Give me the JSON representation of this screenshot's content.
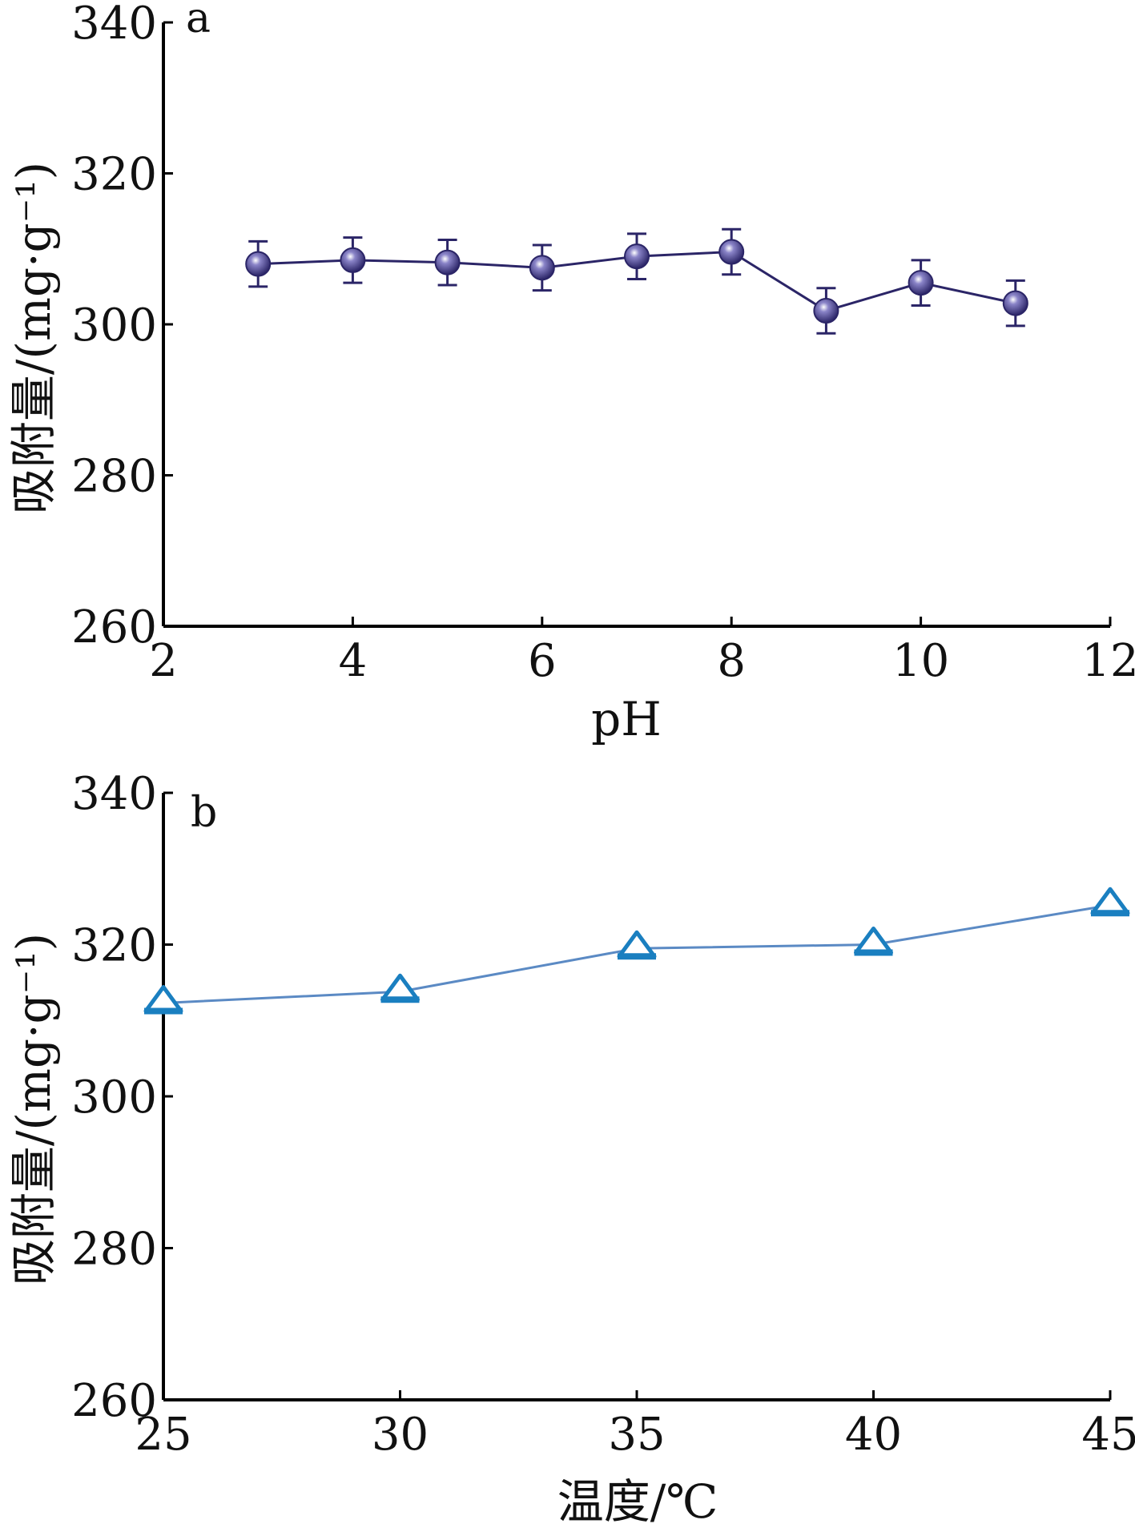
{
  "chart_data": [
    {
      "type": "line",
      "panel_label": "a",
      "xlabel": "pH",
      "ylabel": "吸附量/(mg·g⁻¹)",
      "xlim": [
        2,
        12
      ],
      "ylim": [
        260,
        340
      ],
      "xticks": [
        "2",
        "4",
        "6",
        "8",
        "10",
        "12"
      ],
      "yticks": [
        "260",
        "280",
        "300",
        "320",
        "340"
      ],
      "marker": "circle",
      "color": "#2b2567",
      "error_bars": true,
      "series": [
        {
          "x": [
            3,
            4,
            5,
            6,
            7,
            8,
            9,
            10,
            11
          ],
          "y": [
            308.0,
            308.5,
            308.2,
            307.5,
            309.0,
            309.6,
            301.8,
            305.5,
            302.8
          ],
          "error": [
            3,
            3,
            3,
            3,
            3,
            3,
            3,
            3,
            3
          ]
        }
      ]
    },
    {
      "type": "line",
      "panel_label": "b",
      "xlabel": "温度/℃",
      "ylabel": "吸附量/(mg·g⁻¹)",
      "xlim": [
        25,
        45
      ],
      "ylim": [
        260,
        340
      ],
      "xticks": [
        "25",
        "30",
        "35",
        "40",
        "45"
      ],
      "yticks": [
        "260",
        "280",
        "300",
        "320",
        "340"
      ],
      "marker": "triangle",
      "color": "#5b8ac4",
      "marker_color": "#1a7fc0",
      "error_bars": false,
      "series": [
        {
          "x": [
            25,
            30,
            35,
            40,
            45
          ],
          "y": [
            312.3,
            313.8,
            319.5,
            320.0,
            325.2
          ]
        }
      ]
    }
  ]
}
